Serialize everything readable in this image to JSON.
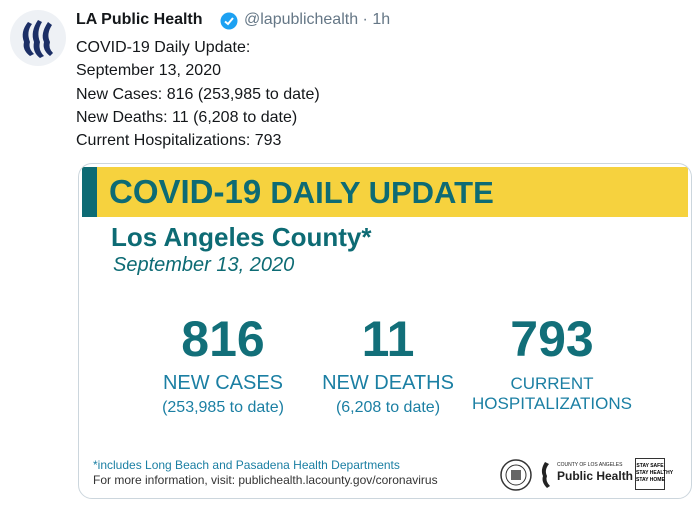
{
  "tweet": {
    "author": "LA Public Health",
    "handle": "@lapublichealth",
    "separator": "·",
    "time": "1h",
    "text_lines": [
      "COVID-19 Daily Update:",
      "September 13, 2020",
      "New Cases: 816 (253,985 to date)",
      "New Deaths: 11 (6,208 to date)",
      "Current Hospitalizations: 793"
    ]
  },
  "card": {
    "banner_bold": "COVID-19",
    "banner_rest": "DAILY UPDATE",
    "region": "Los Angeles County*",
    "date": "September 13, 2020",
    "stats": [
      {
        "value": "816",
        "label_lines": [
          "NEW CASES"
        ],
        "detail": "(253,985 to date)"
      },
      {
        "value": "11",
        "label_lines": [
          "NEW DEATHS"
        ],
        "detail": "(6,208 to date)"
      },
      {
        "value": "793",
        "label_lines": [
          "CURRENT",
          "HOSPITALIZATIONS"
        ]
      }
    ],
    "footnote": "*includes Long Beach and Pasadena Health Departments",
    "info": "For more information, visit: publichealth.lacounty.gov/coronavirus",
    "logos": {
      "county": "COUNTY OF LOS ANGELES",
      "dept": "Public Health",
      "badge_lines": [
        "STAY SAFE",
        "STAY HEALTHY",
        "STAY HOME"
      ]
    }
  }
}
